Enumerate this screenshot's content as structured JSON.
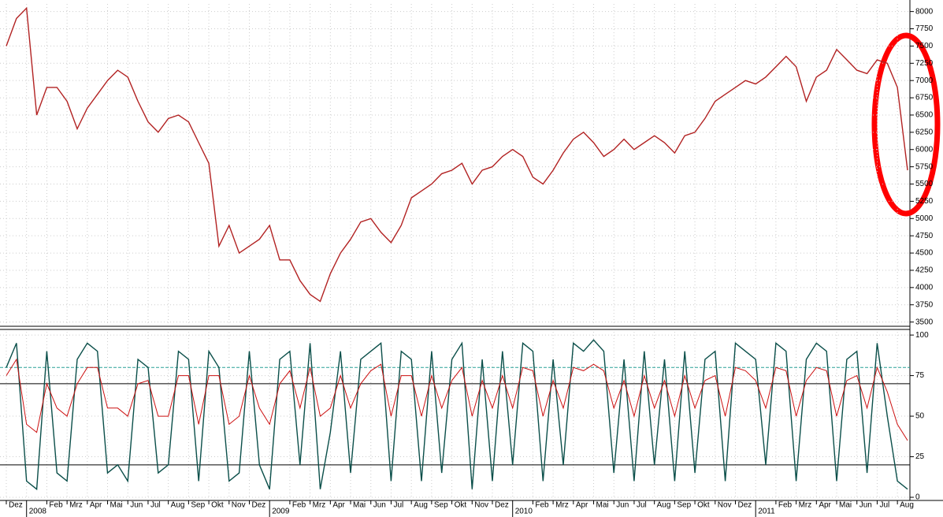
{
  "chart_data": [
    {
      "type": "line",
      "categories": [
        "Dez",
        null,
        "2008",
        null,
        "Feb",
        null,
        "Mrz",
        null,
        "Apr",
        null,
        "Mai",
        null,
        "Jun",
        null,
        "Jul",
        null,
        "Aug",
        null,
        "Sep",
        null,
        "Okt",
        null,
        "Nov",
        null,
        "Dez",
        null,
        "2009",
        null,
        "Feb",
        null,
        "Mrz",
        null,
        "Apr",
        null,
        "Mai",
        null,
        "Jun",
        null,
        "Jul",
        null,
        "Aug",
        null,
        "Sep",
        null,
        "Okt",
        null,
        "Nov",
        null,
        "Dez",
        null,
        "2010",
        null,
        "Feb",
        null,
        "Mrz",
        null,
        "Apr",
        null,
        "Mai",
        null,
        "Jun",
        null,
        "Jul",
        null,
        "Aug",
        null,
        "Sep",
        null,
        "Okt",
        null,
        "Nov",
        null,
        "Dez",
        null,
        "2011",
        null,
        "Feb",
        null,
        "Mrz",
        null,
        "Apr",
        null,
        "Mai",
        null,
        "Jun",
        null,
        "Jul",
        null,
        "Aug",
        null
      ],
      "series": [
        {
          "color": "#b22222",
          "values": [
            7500,
            7900,
            8050,
            6500,
            6900,
            6900,
            6700,
            6300,
            6600,
            6800,
            7000,
            7150,
            7050,
            6700,
            6400,
            6250,
            6450,
            6500,
            6400,
            6100,
            5800,
            4600,
            4900,
            4500,
            4600,
            4700,
            4900,
            4400,
            4400,
            4100,
            3900,
            3800,
            4200,
            4500,
            4700,
            4950,
            5000,
            4800,
            4650,
            4900,
            5300,
            5400,
            5500,
            5650,
            5700,
            5800,
            5500,
            5700,
            5750,
            5900,
            6000,
            5900,
            5600,
            5500,
            5700,
            5950,
            6150,
            6250,
            6100,
            5900,
            6000,
            6150,
            6000,
            6100,
            6200,
            6100,
            5950,
            6200,
            6250,
            6450,
            6700,
            6800,
            6900,
            7000,
            6950,
            7050,
            7200,
            7350,
            7200,
            6700,
            7050,
            7150,
            7450,
            7300,
            7150,
            7100,
            7300,
            7250,
            6900,
            5700
          ]
        }
      ],
      "ylim": [
        3450,
        8110
      ],
      "yticks": [
        3500,
        3750,
        4000,
        4250,
        4500,
        4750,
        5000,
        5250,
        5500,
        5750,
        6000,
        6250,
        6500,
        6750,
        7000,
        7250,
        7500,
        7750,
        8000
      ],
      "grid": true
    },
    {
      "type": "line",
      "series": [
        {
          "color": "#0b4f4a",
          "values": [
            80,
            95,
            10,
            5,
            90,
            15,
            10,
            85,
            95,
            90,
            15,
            20,
            10,
            85,
            80,
            15,
            20,
            90,
            85,
            10,
            90,
            80,
            10,
            15,
            90,
            20,
            5,
            85,
            90,
            20,
            95,
            5,
            40,
            90,
            15,
            85,
            90,
            95,
            10,
            90,
            85,
            10,
            90,
            15,
            85,
            95,
            5,
            85,
            10,
            90,
            20,
            95,
            90,
            10,
            85,
            20,
            95,
            90,
            97,
            90,
            15,
            85,
            10,
            90,
            20,
            85,
            10,
            90,
            15,
            85,
            90,
            10,
            95,
            90,
            85,
            20,
            95,
            90,
            10,
            85,
            95,
            90,
            10,
            85,
            90,
            15,
            95,
            50,
            10,
            5
          ]
        },
        {
          "color": "#cc1111",
          "values": [
            75,
            85,
            45,
            40,
            70,
            55,
            50,
            70,
            80,
            80,
            55,
            55,
            50,
            70,
            72,
            50,
            50,
            75,
            75,
            45,
            75,
            75,
            45,
            50,
            75,
            55,
            45,
            70,
            78,
            55,
            80,
            50,
            55,
            75,
            55,
            70,
            78,
            82,
            50,
            75,
            75,
            50,
            75,
            55,
            72,
            80,
            50,
            72,
            55,
            75,
            55,
            80,
            78,
            50,
            72,
            55,
            80,
            78,
            82,
            78,
            55,
            72,
            50,
            75,
            55,
            72,
            50,
            75,
            55,
            72,
            75,
            50,
            80,
            78,
            72,
            55,
            80,
            78,
            50,
            72,
            80,
            78,
            50,
            72,
            75,
            55,
            80,
            65,
            45,
            35
          ]
        }
      ],
      "reference_lines": [
        80,
        70,
        20
      ],
      "ylim": [
        0,
        102
      ],
      "yticks": [
        0,
        25,
        50,
        75,
        100
      ],
      "grid": true
    }
  ]
}
